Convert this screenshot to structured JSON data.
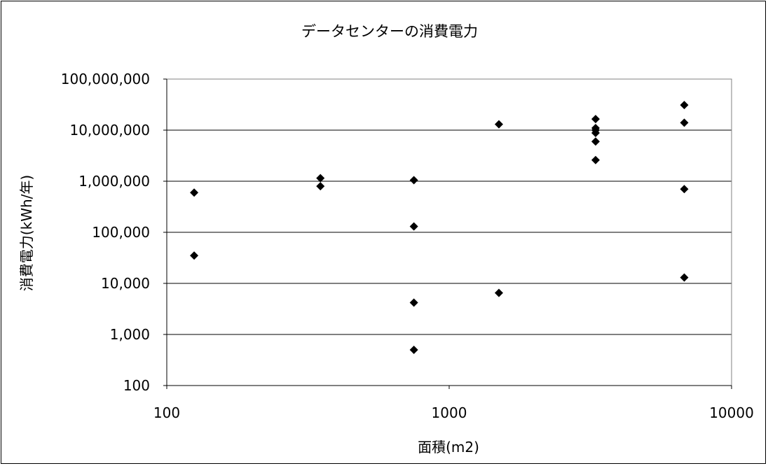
{
  "chart_data": {
    "type": "scatter",
    "title": "データセンターの消費電力",
    "xlabel": "面積(m2)",
    "ylabel": "消費電力(kWh/年)",
    "x_scale": "log",
    "y_scale": "log",
    "xlim": [
      100,
      10000
    ],
    "ylim": [
      100,
      100000000
    ],
    "x_ticks": [
      "100",
      "1000",
      "10000"
    ],
    "y_ticks": [
      "100",
      "1,000",
      "10,000",
      "100,000",
      "1,000,000",
      "10,000,000",
      "100,000,000"
    ],
    "grid": "horizontal major lines",
    "legend": "none",
    "marker": "diamond",
    "marker_color": "#000000",
    "points": [
      {
        "x": 125,
        "y": 600000
      },
      {
        "x": 125,
        "y": 35000
      },
      {
        "x": 350,
        "y": 1150000
      },
      {
        "x": 350,
        "y": 800000
      },
      {
        "x": 750,
        "y": 1050000
      },
      {
        "x": 750,
        "y": 130000
      },
      {
        "x": 750,
        "y": 4200
      },
      {
        "x": 750,
        "y": 500
      },
      {
        "x": 1500,
        "y": 13000000
      },
      {
        "x": 1500,
        "y": 6500
      },
      {
        "x": 3300,
        "y": 16500000
      },
      {
        "x": 3300,
        "y": 11000000
      },
      {
        "x": 3300,
        "y": 10000000
      },
      {
        "x": 3300,
        "y": 8800000
      },
      {
        "x": 3300,
        "y": 6000000
      },
      {
        "x": 3300,
        "y": 2600000
      },
      {
        "x": 6800,
        "y": 31000000
      },
      {
        "x": 6800,
        "y": 14000000
      },
      {
        "x": 6800,
        "y": 700000
      },
      {
        "x": 6800,
        "y": 13000
      }
    ]
  }
}
